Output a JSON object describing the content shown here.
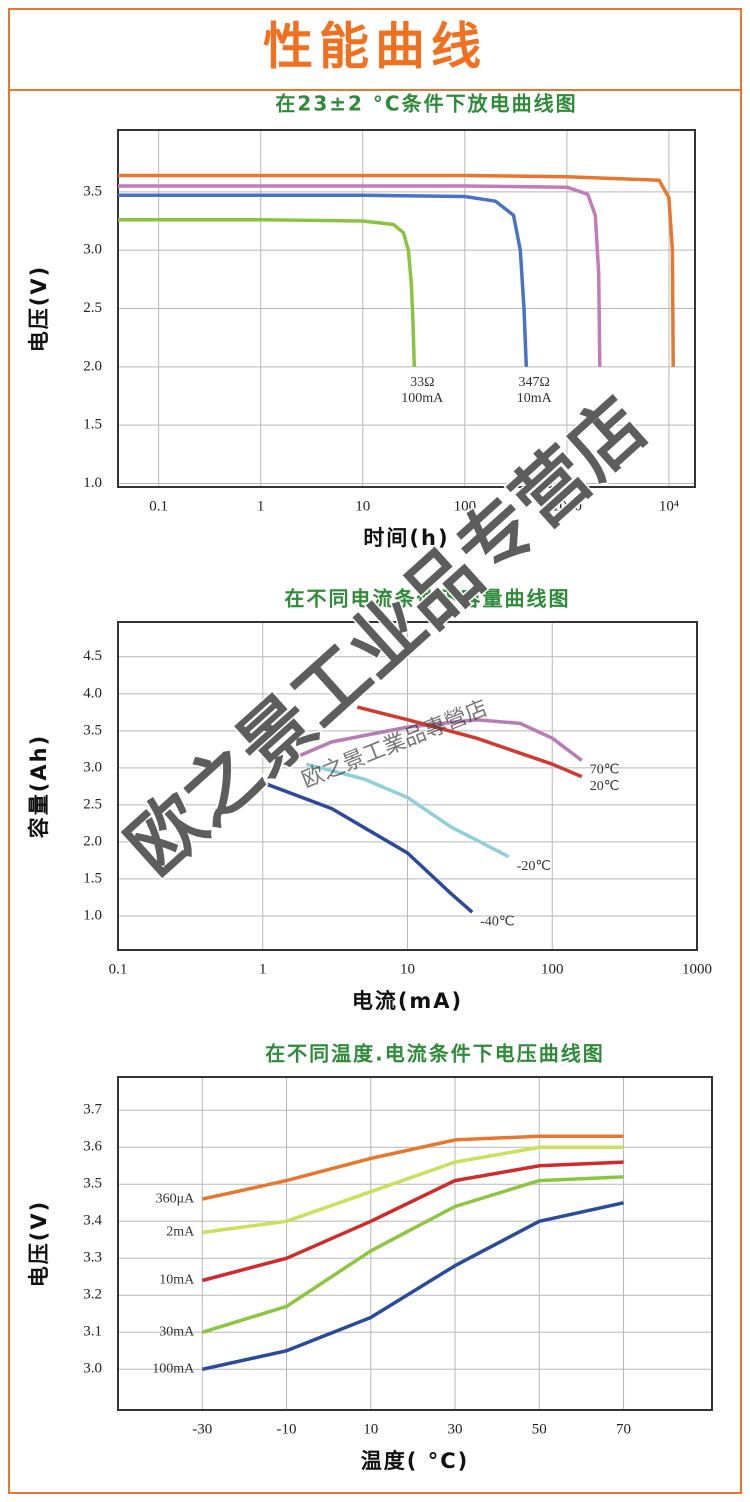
{
  "header": {
    "title": "性能曲线"
  },
  "watermark": {
    "text": "欧之景工业品专营店",
    "small_text": "欧之景工業品專營店"
  },
  "chart_data": [
    {
      "type": "line",
      "title": "在23±2 °C条件下放电曲线图",
      "x_label": "时间(h)",
      "y_label": "电压(V)",
      "xscale": "log",
      "xlim": [
        0.04,
        18000
      ],
      "ylim": [
        0.97,
        4.03
      ],
      "xticks": [
        0.1,
        1,
        10,
        100,
        1000,
        {
          "value": 10000,
          "label": "10⁴"
        }
      ],
      "yticks": [
        {
          "value": 1,
          "label": "1.0"
        },
        1.5,
        {
          "value": 2,
          "label": "2.0"
        },
        2.5,
        {
          "value": 3,
          "label": "3.0"
        },
        3.5
      ],
      "grid": true,
      "series": [
        {
          "color": "#8ac43f",
          "x": [
            0.04,
            1,
            10,
            20,
            25,
            28,
            30,
            31,
            32
          ],
          "values": [
            3.26,
            3.26,
            3.25,
            3.22,
            3.15,
            3.0,
            2.7,
            2.4,
            2.0
          ]
        },
        {
          "color": "#4a72c4",
          "x": [
            0.04,
            1,
            10,
            100,
            200,
            300,
            350,
            380,
            400
          ],
          "values": [
            3.47,
            3.47,
            3.47,
            3.46,
            3.42,
            3.3,
            3.0,
            2.5,
            2.0
          ]
        },
        {
          "color": "#c27cb8",
          "x": [
            0.04,
            1,
            100,
            1000,
            1600,
            1900,
            2050,
            2100
          ],
          "values": [
            3.55,
            3.55,
            3.55,
            3.54,
            3.48,
            3.3,
            2.8,
            2.0
          ]
        },
        {
          "color": "#e8772e",
          "x": [
            0.04,
            1,
            100,
            1000,
            8000,
            10000,
            10800,
            11000
          ],
          "values": [
            3.64,
            3.64,
            3.64,
            3.63,
            3.6,
            3.45,
            3.0,
            2.0
          ]
        }
      ],
      "annotations": [
        {
          "lines": [
            "33Ω",
            "100mA"
          ]
        },
        {
          "lines": [
            "347Ω",
            "10mA"
          ]
        }
      ]
    },
    {
      "type": "line",
      "title": "在不同电流条件下容量曲线图",
      "x_label": "电流(mA)",
      "y_label": "容量(Ah)",
      "xscale": "log",
      "xlim": [
        0.1,
        1000
      ],
      "ylim": [
        0.54,
        4.97
      ],
      "xticks": [
        0.1,
        1,
        10,
        100,
        1000
      ],
      "yticks": [
        {
          "value": 1,
          "label": "1.0"
        },
        1.5,
        {
          "value": 2,
          "label": "2.0"
        },
        2.5,
        {
          "value": 3,
          "label": "3.0"
        },
        3.5,
        {
          "value": 4,
          "label": "4.0"
        },
        4.5
      ],
      "grid": true,
      "direct_labels": "end",
      "series": [
        {
          "name": "70℃",
          "color": "#b77bb5",
          "x": [
            1.5,
            3,
            10,
            30,
            60,
            100,
            160
          ],
          "values": [
            3.1,
            3.35,
            3.55,
            3.65,
            3.6,
            3.4,
            3.1
          ]
        },
        {
          "name": "20℃",
          "color": "#d03a30",
          "x": [
            4.5,
            10,
            30,
            100,
            160
          ],
          "values": [
            3.82,
            3.65,
            3.4,
            3.05,
            2.88
          ]
        },
        {
          "name": "-20℃",
          "color": "#8fd0d8",
          "x": [
            2,
            5,
            10,
            20,
            50
          ],
          "values": [
            3.05,
            2.85,
            2.6,
            2.2,
            1.8
          ]
        },
        {
          "name": "-40℃",
          "color": "#2c4a9a",
          "x": [
            1,
            3,
            10,
            20,
            28
          ],
          "values": [
            2.8,
            2.45,
            1.85,
            1.3,
            1.05
          ]
        }
      ]
    },
    {
      "type": "line",
      "title": "在不同温度.电流条件下电压曲线图",
      "x_label": "温度( °C)",
      "y_label": "电压(V)",
      "xlim": [
        -50,
        91
      ],
      "ylim": [
        2.89,
        3.79
      ],
      "xticks": [
        -30,
        -10,
        10,
        30,
        50,
        70
      ],
      "yticks": [
        {
          "value": 3,
          "label": "3.0"
        },
        3.1,
        3.2,
        3.3,
        3.4,
        3.5,
        3.6,
        3.7
      ],
      "grid": true,
      "direct_labels": "start",
      "x": [
        -30,
        -10,
        10,
        30,
        50,
        70
      ],
      "series": [
        {
          "name": "360μA",
          "color": "#e8772e",
          "values": [
            3.46,
            3.51,
            3.57,
            3.62,
            3.63,
            3.63
          ]
        },
        {
          "name": "2mA",
          "color": "#c8e05a",
          "values": [
            3.37,
            3.4,
            3.48,
            3.56,
            3.6,
            3.6
          ]
        },
        {
          "name": "10mA",
          "color": "#d02a2a",
          "values": [
            3.24,
            3.3,
            3.4,
            3.51,
            3.55,
            3.56
          ]
        },
        {
          "name": "30mA",
          "color": "#8cc63f",
          "values": [
            3.1,
            3.17,
            3.32,
            3.44,
            3.51,
            3.52
          ]
        },
        {
          "name": "100mA",
          "color": "#2a4a9a",
          "values": [
            3.0,
            3.05,
            3.14,
            3.28,
            3.4,
            3.45
          ]
        }
      ]
    }
  ]
}
